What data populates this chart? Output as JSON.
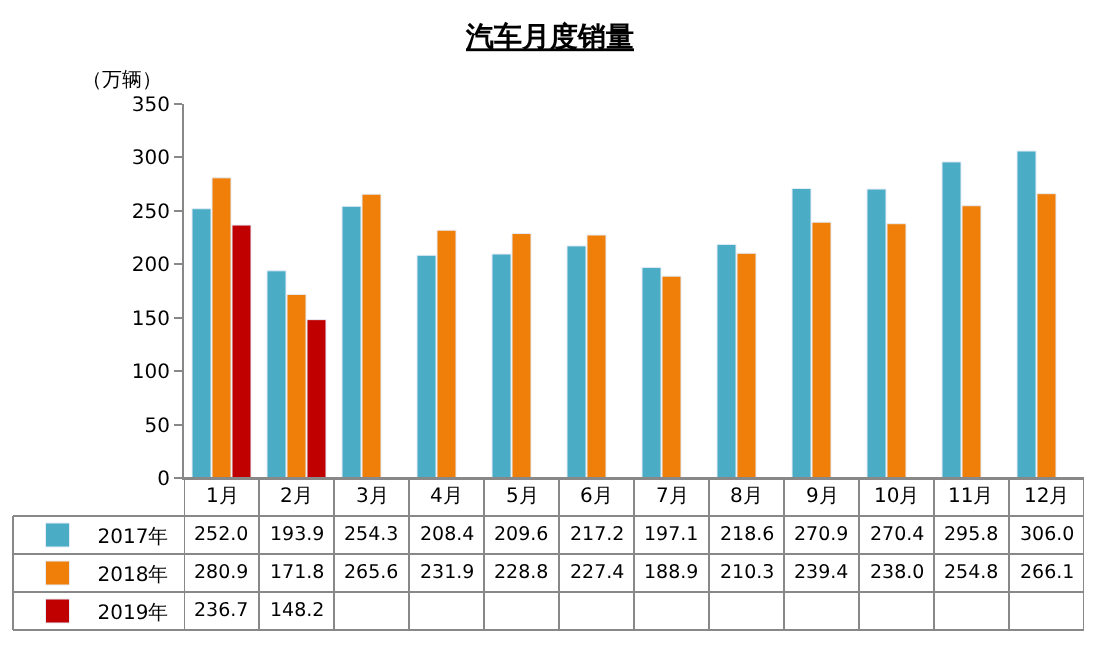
{
  "chart_data": {
    "type": "bar",
    "title": "汽车月度销量",
    "ylabel": "（万辆）",
    "categories": [
      "1月",
      "2月",
      "3月",
      "4月",
      "5月",
      "6月",
      "7月",
      "8月",
      "9月",
      "10月",
      "11月",
      "12月"
    ],
    "series": [
      {
        "name": "2017年",
        "color": "#4bacc6",
        "values": [
          252.0,
          193.9,
          254.3,
          208.4,
          209.6,
          217.2,
          197.1,
          218.6,
          270.9,
          270.4,
          295.8,
          306.0
        ],
        "value_labels": [
          "252.0",
          "193.9",
          "254.3",
          "208.4",
          "209.6",
          "217.2",
          "197.1",
          "218.6",
          "270.9",
          "270.4",
          "295.8",
          "306.0"
        ]
      },
      {
        "name": "2018年",
        "color": "#f07f09",
        "values": [
          280.9,
          171.8,
          265.6,
          231.9,
          228.8,
          227.4,
          188.9,
          210.3,
          239.4,
          238.0,
          254.8,
          266.1
        ],
        "value_labels": [
          "280.9",
          "171.8",
          "265.6",
          "231.9",
          "228.8",
          "227.4",
          "188.9",
          "210.3",
          "239.4",
          "238.0",
          "254.8",
          "266.1"
        ]
      },
      {
        "name": "2019年",
        "color": "#c00000",
        "values": [
          236.7,
          148.2,
          null,
          null,
          null,
          null,
          null,
          null,
          null,
          null,
          null,
          null
        ],
        "value_labels": [
          "236.7",
          "148.2",
          null,
          null,
          null,
          null,
          null,
          null,
          null,
          null,
          null,
          null
        ]
      }
    ],
    "ylim": [
      0,
      350
    ],
    "yticks": [
      0,
      50,
      100,
      150,
      200,
      250,
      300,
      350
    ],
    "grid": false,
    "legend": "bottom left"
  }
}
